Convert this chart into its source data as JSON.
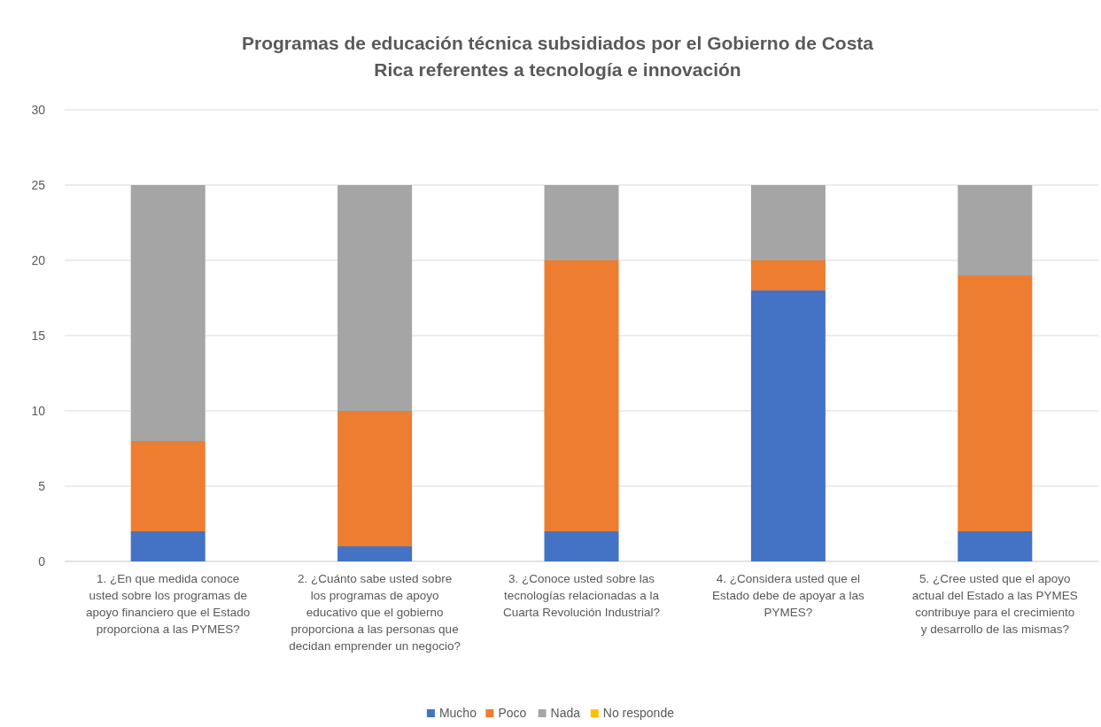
{
  "chart_data": {
    "type": "bar",
    "title": "Programas de educación técnica subsidiados por el Gobierno de Costa Rica referentes a tecnología e innovación",
    "stacked": true,
    "categories": [
      "1.    ¿En que medida conoce usted sobre los programas de apoyo financiero que el Estado proporciona a las PYMES?",
      "2.    ¿Cuánto sabe usted sobre los programas de apoyo educativo que el gobierno proporciona a las personas que decidan emprender un negocio?",
      "3.    ¿Conoce usted sobre las tecnologías relacionadas a la Cuarta Revolución Industrial?",
      "4.    ¿Considera usted que el Estado debe de apoyar a las PYMES?",
      "5.    ¿Cree usted que el apoyo actual del Estado a las PYMES contribuye para el crecimiento y desarrollo de las mismas?"
    ],
    "series": [
      {
        "name": "Mucho",
        "color": "#4472c4",
        "values": [
          2,
          1,
          2,
          18,
          2
        ]
      },
      {
        "name": "Poco",
        "color": "#ed7d31",
        "values": [
          6,
          9,
          18,
          2,
          17
        ]
      },
      {
        "name": "Nada",
        "color": "#a5a5a5",
        "values": [
          17,
          15,
          5,
          5,
          6
        ]
      },
      {
        "name": "No responde",
        "color": "#ffc000",
        "values": [
          0,
          0,
          0,
          0,
          0
        ]
      }
    ],
    "ylim": [
      0,
      30
    ],
    "yticks": [
      0,
      5,
      10,
      15,
      20,
      25,
      30
    ],
    "grid": "y",
    "legend": "bottom"
  }
}
